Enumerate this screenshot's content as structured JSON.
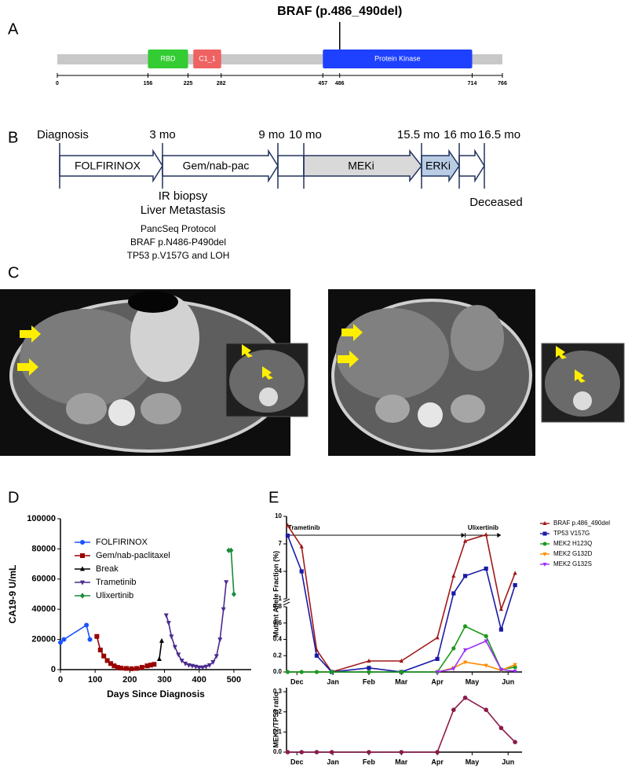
{
  "panel_a": {
    "label": "A",
    "title": "BRAF (p.486_490del)",
    "mutation": 486,
    "xlim": [
      0,
      766
    ],
    "ticks": [
      0,
      156,
      225,
      282,
      457,
      486,
      714,
      766
    ],
    "backbone_color": "#c8c8c8",
    "domains": [
      {
        "name": "RBD",
        "start": 156,
        "end": 225,
        "color": "#33cc33"
      },
      {
        "name": "C1_1",
        "start": 234,
        "end": 282,
        "color": "#ef6262"
      },
      {
        "name": "Protein Kinase",
        "start": 457,
        "end": 714,
        "color": "#1e40ff"
      }
    ]
  },
  "panel_b": {
    "label": "B",
    "timepoints": [
      "Diagnosis",
      "3 mo",
      "9 mo",
      "10 mo",
      "15.5 mo",
      "16 mo",
      "16.5 mo"
    ],
    "phases": [
      "FOLFIRINOX",
      "Gem/nab-pac",
      "MEKi",
      "ERKi"
    ],
    "events": [
      "IR biopsy",
      "Liver Metastasis",
      "Deceased"
    ],
    "notes": [
      "PancSeq Protocol",
      "BRAF p.N486-P490del",
      "TP53 p.V157G and LOH"
    ]
  },
  "panel_c": {
    "label": "C"
  },
  "chart_data": [
    {
      "label": "D",
      "type": "line",
      "x_label": "Days Since Diagnosis",
      "y_label": "CA19-9 U/mL",
      "legend": "upper left",
      "xlim": [
        0,
        550
      ],
      "xticks": [
        0,
        100,
        200,
        300,
        400,
        500
      ],
      "ylim": [
        0,
        100000
      ],
      "yticks": [
        0,
        20000,
        40000,
        60000,
        80000,
        100000
      ],
      "series": [
        {
          "name": "FOLFIRINOX",
          "color": "#1a53ff",
          "marker": "circle",
          "x": [
            0,
            10,
            75,
            85
          ],
          "values": [
            18000,
            20000,
            29500,
            20000
          ]
        },
        {
          "name": "Gem/nab-paclitaxel",
          "color": "#990000",
          "marker": "square",
          "x": [
            105,
            115,
            125,
            135,
            145,
            155,
            165,
            175,
            190,
            205,
            220,
            235,
            250,
            260,
            270
          ],
          "values": [
            22000,
            13000,
            9000,
            6000,
            4000,
            2500,
            1500,
            1000,
            800,
            600,
            800,
            1500,
            2500,
            3000,
            3500
          ]
        },
        {
          "name": "Break",
          "color": "#000000",
          "marker": "triangle",
          "x": [
            285,
            292
          ],
          "values": [
            7000,
            19000
          ]
        },
        {
          "name": "Trametinib",
          "color": "#4b2a8f",
          "marker": "triangle-down",
          "x": [
            305,
            312,
            320,
            330,
            340,
            350,
            360,
            370,
            380,
            390,
            400,
            410,
            420,
            430,
            440,
            450,
            460,
            470,
            478
          ],
          "values": [
            36000,
            31000,
            22000,
            15000,
            10000,
            6000,
            4000,
            3000,
            2500,
            2000,
            1500,
            1500,
            2000,
            3000,
            5000,
            9000,
            20000,
            40000,
            58000
          ]
        },
        {
          "name": "Ulixertinib",
          "color": "#1a8a3a",
          "marker": "diamond",
          "x": [
            485,
            492,
            500
          ],
          "values": [
            79000,
            79000,
            50000
          ]
        }
      ]
    },
    {
      "label": "E",
      "type": "line",
      "y_label": "Mutant Allele Fraction (%)",
      "xlim": [
        -9,
        194
      ],
      "xticks": [
        {
          "value": 0,
          "label": "Dec"
        },
        {
          "value": 31,
          "label": "Jan"
        },
        {
          "value": 62,
          "label": "Feb"
        },
        {
          "value": 90,
          "label": "Mar"
        },
        {
          "value": 121,
          "label": "Apr"
        },
        {
          "value": 151,
          "label": "May"
        },
        {
          "value": 182,
          "label": "Jun"
        }
      ],
      "ysegments": [
        {
          "ylim": [
            0,
            0.8
          ],
          "yticks": [
            {
              "value": 0,
              "label": "0.0"
            },
            0.2,
            0.4,
            0.6,
            0.8
          ]
        },
        {
          "ylim": [
            1,
            10
          ],
          "yticks": [
            1,
            4,
            7,
            10
          ]
        }
      ],
      "annotations": [
        {
          "text": "Trametinib",
          "start": -9,
          "end": 145
        },
        {
          "text": "Ulixertinib",
          "start": 145,
          "end": 176
        }
      ],
      "x": [
        -8,
        4,
        17,
        30,
        62,
        90,
        121,
        135,
        145,
        163,
        176,
        188
      ],
      "series": [
        {
          "name": "BRAF p.486_490del",
          "color": "#a01818",
          "marker": "triangle",
          "values": [
            9,
            6.7,
            0.27,
            0,
            0.135,
            0.135,
            0.42,
            3.5,
            7.3,
            8,
            0.77,
            3.8
          ]
        },
        {
          "name": "TP53 V157G",
          "color": "#1a1aa8",
          "marker": "square",
          "values": [
            7.9,
            4,
            0.2,
            0,
            0.05,
            0,
            0.16,
            1.6,
            3.5,
            4.3,
            0.52,
            2.5
          ]
        },
        {
          "name": "MEK2 H123Q",
          "color": "#1a9a1a",
          "marker": "circle",
          "values": [
            0,
            0,
            0,
            0,
            0,
            0,
            0,
            0.29,
            0.56,
            0.44,
            0.03,
            0.06
          ]
        },
        {
          "name": "MEK2 G132D",
          "color": "#ff8c00",
          "marker": "triangle-down",
          "values": [
            null,
            null,
            null,
            null,
            null,
            null,
            0,
            0.05,
            0.12,
            0.08,
            0.02,
            0.09
          ]
        },
        {
          "name": "MEK2 G132S",
          "color": "#9b30ff",
          "marker": "triangle-down",
          "values": [
            null,
            null,
            null,
            null,
            null,
            null,
            0,
            0.04,
            0.27,
            0.38,
            0.03,
            0.01
          ]
        }
      ]
    },
    {
      "type": "line",
      "y_label": "MEK2/TP53 ratio",
      "xlim": [
        -9,
        194
      ],
      "xticks": [
        {
          "value": 0,
          "label": "Dec"
        },
        {
          "value": 31,
          "label": "Jan"
        },
        {
          "value": 62,
          "label": "Feb"
        },
        {
          "value": 90,
          "label": "Mar"
        },
        {
          "value": 121,
          "label": "Apr"
        },
        {
          "value": 151,
          "label": "May"
        },
        {
          "value": 182,
          "label": "Jun"
        }
      ],
      "ylim": [
        0,
        0.32
      ],
      "yticks": [
        {
          "value": 0,
          "label": "0.0"
        },
        0.1,
        0.2,
        0.3
      ],
      "x": [
        -8,
        4,
        17,
        30,
        62,
        90,
        121,
        135,
        145,
        163,
        176,
        188
      ],
      "series": [
        {
          "color": "#8b1a4a",
          "marker": "circle",
          "values": [
            0,
            0,
            0,
            0,
            0,
            0,
            0,
            0.21,
            0.27,
            0.21,
            0.12,
            0.05
          ]
        }
      ]
    }
  ]
}
